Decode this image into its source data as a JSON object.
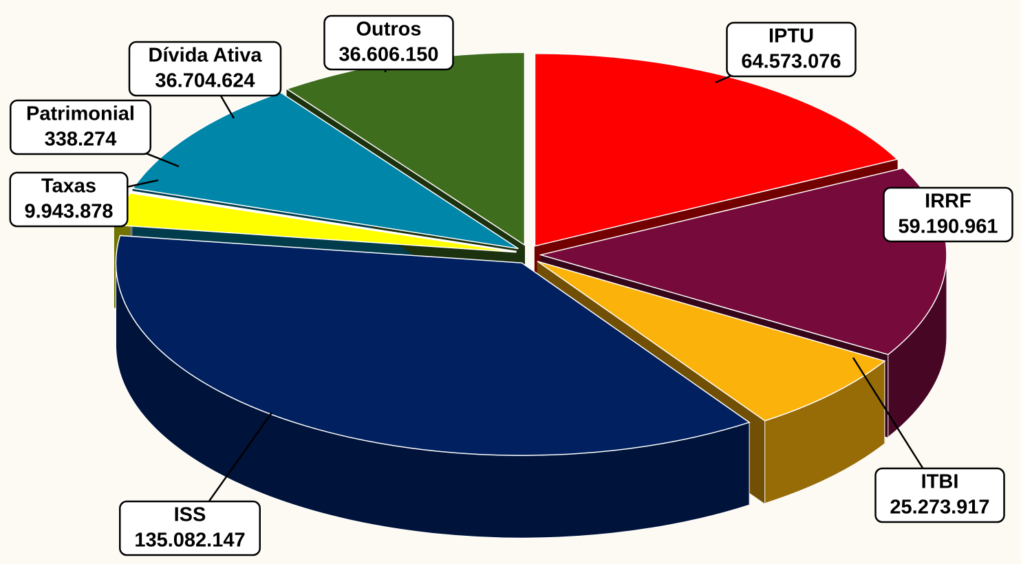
{
  "chart_data": {
    "type": "pie",
    "categories": [
      "IPTU",
      "IRRF",
      "ITBI",
      "ISS",
      "Taxas",
      "Patrimonial",
      "Dívida Ativa",
      "Outros"
    ],
    "values": [
      64573076,
      59190961,
      25273917,
      135082147,
      9943878,
      338274,
      36704624,
      36606150
    ],
    "value_labels": [
      "64.573.076",
      "59.190.961",
      "25.273.917",
      "135.082.147",
      "9.943.878",
      "338.274",
      "36.704.624",
      "36.606.150"
    ],
    "colors": [
      "#ff0000",
      "#760a3a",
      "#fbb20a",
      "#002060",
      "#ffff00",
      "#ffffff",
      "#0086a8",
      "#3f6d1e"
    ]
  }
}
